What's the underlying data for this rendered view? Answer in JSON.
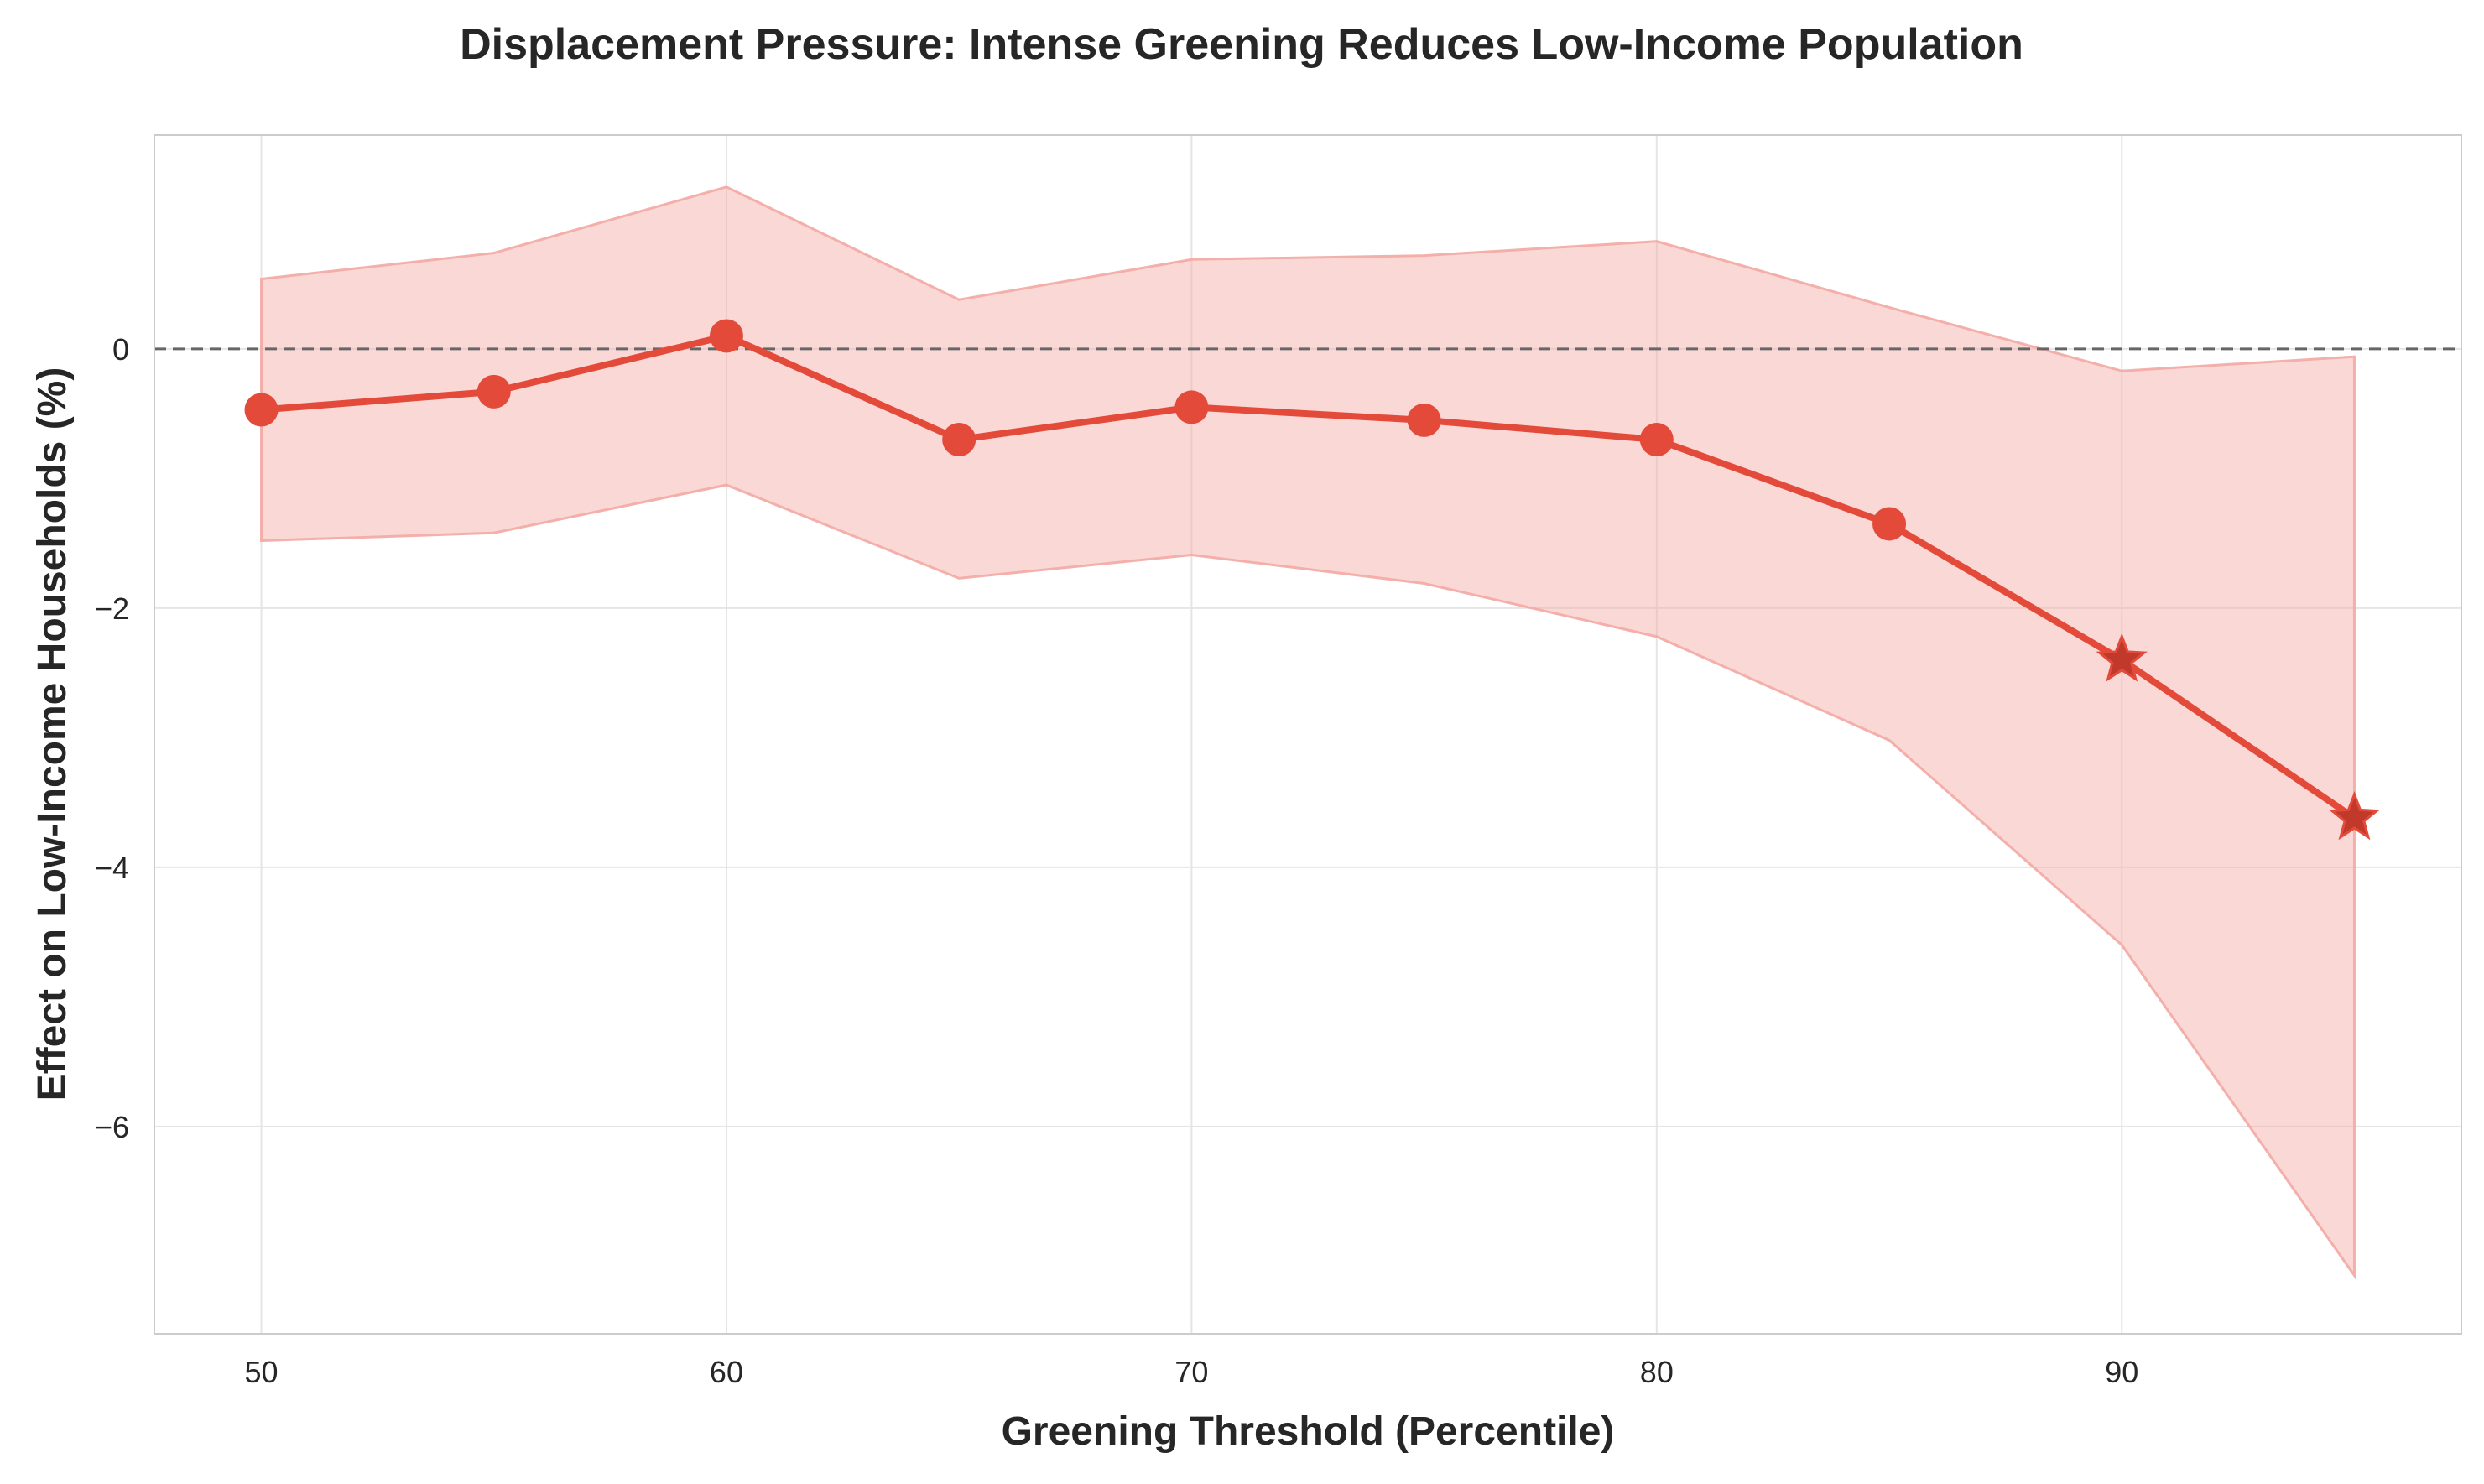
{
  "chart_data": {
    "type": "line",
    "title": "Displacement Pressure: Intense Greening Reduces Low-Income Population",
    "xlabel": "Greening Threshold (Percentile)",
    "ylabel": "Effect on Low-Income Households (%)",
    "xlim": [
      47.7,
      97.3
    ],
    "ylim": [
      -7.6,
      1.65
    ],
    "x_ticks": [
      50,
      60,
      70,
      80,
      90
    ],
    "y_ticks": [
      0,
      -2,
      -4,
      -6
    ],
    "y_tick_labels": [
      "0",
      "−2",
      "−4",
      "−6"
    ],
    "grid": true,
    "reference_line": {
      "y": 0,
      "style": "dashed",
      "color": "#666666"
    },
    "series": [
      {
        "color": "#e34a3a",
        "x": [
          50,
          55,
          60,
          65,
          70,
          75,
          80,
          85,
          90,
          95
        ],
        "y": [
          -0.47,
          -0.33,
          0.1,
          -0.7,
          -0.45,
          -0.55,
          -0.7,
          -1.35,
          -2.4,
          -3.62
        ],
        "ci_lower": [
          -1.48,
          -1.42,
          -1.05,
          -1.77,
          -1.59,
          -1.81,
          -2.22,
          -3.02,
          -4.6,
          -7.15
        ],
        "ci_upper": [
          0.54,
          0.74,
          1.25,
          0.38,
          0.69,
          0.72,
          0.83,
          0.32,
          -0.17,
          -0.06
        ],
        "markers": [
          "circle",
          "circle",
          "circle",
          "circle",
          "circle",
          "circle",
          "circle",
          "circle",
          "star",
          "star"
        ]
      }
    ],
    "colors": {
      "line": "#e34a3a",
      "band": "#f3a9a3",
      "star": "#c0392b",
      "grid": "#e5e5e5",
      "frame": "#cccccc"
    }
  }
}
